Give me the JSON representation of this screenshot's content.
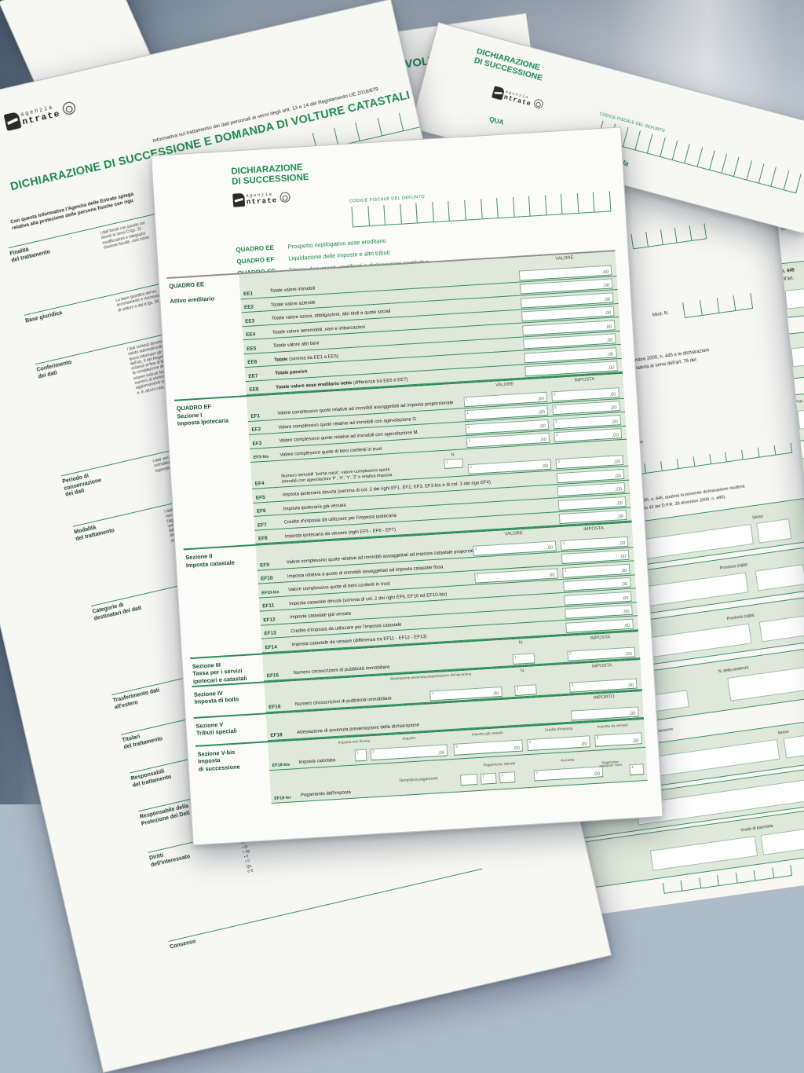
{
  "colors": {
    "green": "#1d8a4c",
    "table_fill": "#dee9da",
    "line_green": "#2f8b58",
    "paper": "#f7f7f4"
  },
  "logo": {
    "line1": "agenzia",
    "line2": "ntrate"
  },
  "left_form": {
    "info_line": "Informativa sul trattamento dei dati personali ai sensi degli artt. 13 e 14 del Regolamento UE 2016/679",
    "title": "DICHIARAZIONE DI SUCCESSIONE E DOMANDA DI VOLTURE CATASTALI",
    "intro_line1": "Con questa informativa l'Agenzia delle Entrate spiega",
    "intro_line2": "relativa alla protezione delle persone fisiche con rigu",
    "cf_label": "CODICE FISCALE DEL DEFUNTO",
    "rows": [
      {
        "label": "Finalità\ndel trattamento",
        "snippet": "I dati forniti con questo mo\ndovuti ai sensi D.lgs. 31\nmodificazioni e integrazio\nelusione fiscale, così come"
      },
      {
        "label": "Base giuridica",
        "snippet": "La base giuridica del tra\naccertamento e riscossio\ndi settore e dal d.lgs. 34"
      },
      {
        "label": "Conferimento\ndei dati",
        "snippet": "I dati richiesti devono\nvaluta automatizzato\ndovrà informare gli i\ndell'art. 9 del Regolam\nrichiesti al fine di liqui\nla compilazione del\nessere indicati facolt\nnumero di telefono\naggiornamenti su\ne, in alcuni casi, p"
      },
      {
        "label": "Periodo di\nconservazione\ndei dati",
        "snippet": "I dati verranno con\nnormativa di rifer\nrispondere a rich"
      },
      {
        "label": "Modalità\ndel trattamento",
        "snippet": "I dati personali t\nraccolti. I tratta\nl'Agenzia delle\nvengono gestit\ndall'alterazione\nintermediari e\nesclusivamente"
      },
      {
        "label": "Categorie di\ndestinatari dei dati",
        "snippet": "I suoi dati pe\npersonali che\ncomunicati a\n• ai soggetti\nuna pronu\n• ad altri e\ndella vige"
      },
      {
        "label": "Trasferimento dati\nall'estero",
        "snippet": "Alcuni da\ninternazio"
      },
      {
        "label": "Titolari\ndel trattamento",
        "snippet": "Titolari d\nper lo s"
      },
      {
        "label": "Responsabili\ndel trattamento",
        "snippet": "L'Agen\ndell'A"
      },
      {
        "label": "Responsabile della\nProtezione dei Dati",
        "snippet": "Il dato"
      },
      {
        "label": "Diritti\ndell'interessato",
        "snippet": "L'inte\noper\n• di\n• op\n• li\n• ri\nQu\ne d"
      },
      {
        "label": "Consenso",
        "snippet": ""
      }
    ]
  },
  "volture_form": {
    "title_fragment": "VOLT",
    "mod_n": "Mod. N.",
    "dpr_line1": "D.P.R. 28 dicembre 2000, n. 445 e le dichiarazioni",
    "dpr_line2": "leggi speciali in materia ai sensi dell'art. 76 del",
    "rappresentante": "rappresentante",
    "qualora_line1": "2000, n. 445, qualora la presente dichiarazione risulterà",
    "qualora_line2": "articolo 43 del D.P.R. 28 dicembre 2000, n. 445).",
    "fields": {
      "sesso": "Sesso",
      "provincia": "Provincia (sigla)",
      "n_sentenza": "N. della sentenza",
      "dichiarazione": "dichiarazione",
      "grado": "Grado di parentela"
    }
  },
  "right_form": {
    "title_line1": "DICHIARAZIONE",
    "title_line2": "DI SUCCESSIONE",
    "cf_label": "CODICE FISCALE DEL DEFUNTO",
    "quadro_fragment": "QUA",
    "italic_fragment": "i alla"
  },
  "far_right_form": {
    "title_fragment": "ario",
    "line1": "n. 445",
    "line2": "dell'art.",
    "prov_fragment": "Prov"
  },
  "main_form": {
    "title_line1": "DICHIARAZIONE",
    "title_line2": "DI SUCCESSIONE",
    "cf_label": "CODICE FISCALE DEL DEFUNTO",
    "quadri": [
      {
        "code": "QUADRO EE",
        "desc": "Prospetto riepilogativo asse ereditario"
      },
      {
        "code": "QUADRO EF",
        "desc": "Liquidazione delle imposte e altri tributi"
      },
      {
        "code": "QUADRO EG",
        "desc": "Elenco documenti, certificati e dichiarazioni sostitutive"
      }
    ],
    "table": {
      "headers": {
        "valore": "VALORE",
        "imposta": "IMPOSTA",
        "importo": "IMPORTO",
        "n": "N."
      },
      "cents": ",00",
      "sections": [
        {
          "label_lines": [
            "QUADRO EE",
            "",
            "Attivo ereditario"
          ],
          "header": {
            "type": "v"
          },
          "rows": [
            {
              "code": "EE1",
              "desc": "Totale valore immobili",
              "cols": "V"
            },
            {
              "code": "EE2",
              "desc": "Totale valore aziende",
              "cols": "V"
            },
            {
              "code": "EE3",
              "desc": "Totale valore azioni, obbligazioni, altri titoli e quote sociali",
              "cols": "V"
            },
            {
              "code": "EE4",
              "desc": "Totale valore aeromobili, navi e imbarcazioni",
              "cols": "V"
            },
            {
              "code": "EE5",
              "desc": "Totale valore altri beni",
              "cols": "V"
            },
            {
              "code": "EE6",
              "desc_bold": "Totale",
              "desc": "(somma da EE1 a EE5)",
              "cols": "V"
            },
            {
              "code": "EE7",
              "desc_bold": "Totale passivo",
              "desc": "",
              "cols": "V"
            },
            {
              "code": "EE8",
              "desc_bold": "Totale valore asse ereditario netto",
              "desc": "(differenza tra EE6 e EE7)",
              "cols": "V"
            }
          ]
        },
        {
          "label_lines": [
            "QUADRO EF",
            "Sezione I",
            "Imposta Ipotecaria"
          ],
          "header": {
            "type": "vi"
          },
          "rows": [
            {
              "code": "EF1",
              "desc": "Valore complessivo quote relative ad immobili assoggettati ad imposta proporzionale",
              "cols": "VI"
            },
            {
              "code": "EF2",
              "desc": "Valore complessivo quote relative ad immobili con agevolazione G",
              "cols": "VI"
            },
            {
              "code": "EF3",
              "desc": "Valore complessivo quote relative ad immobili con agevolazione M.",
              "cols": "VI"
            },
            {
              "code": "EF3-bis",
              "desc": "Valore complessivo quote di beni conferiti in trust",
              "cols": "VI"
            },
            {
              "code": "EF4",
              "desc": "Numero immobili \"prima casa\", valore complessivo quote\nimmobili con agevolazioni 'P', 'X', 'Y', 'Z' e relativa imposta",
              "cols": "NVI"
            },
            {
              "code": "EF5",
              "desc": "Imposta ipotecaria dovuta (somma di col. 2 dei righi EF1, EF2, EF3, EF3-bis e di col. 3 del rigo EF4)",
              "cols": "I"
            },
            {
              "code": "EF6",
              "desc": "Imposta ipotecaria già versata",
              "cols": "I"
            },
            {
              "code": "EF7",
              "desc": "Credito d'imposta da utilizzare per l'imposta ipotecaria",
              "cols": "I"
            },
            {
              "code": "EF8",
              "desc": "Imposta ipotecaria da versare (righi EF5 - EF6 - EF7)",
              "cols": "I"
            }
          ]
        },
        {
          "label_lines": [
            "Sezione II",
            "Imposta catastale"
          ],
          "header": {
            "type": "vi"
          },
          "rows": [
            {
              "code": "EF9",
              "desc": "Valore complessivo quote relative ad immobili assoggettati ad imposta catastale proporzionale",
              "cols": "VI"
            },
            {
              "code": "EF10",
              "desc": "Imposta relativa a quote di immobili assoggettati ad imposta catastale fissa",
              "cols": "I"
            },
            {
              "code": "EF10-bis",
              "desc": "Valore complessivo quote di beni conferiti in trust",
              "cols": "VI"
            },
            {
              "code": "EF11",
              "desc": "Imposta catastale dovuta (somma di col. 2 dei righi EF9, EF10 ed EF10-bis)",
              "cols": "I"
            },
            {
              "code": "EF12",
              "desc": "Imposta catastale già versata",
              "cols": "I"
            },
            {
              "code": "EF13",
              "desc": "Credito d'imposta da utilizzare per l'imposta catastale",
              "cols": "I"
            },
            {
              "code": "EF14",
              "desc": "Imposta catastale da versare (differenza tra EF11 - EF12 - EF13)",
              "cols": "I"
            }
          ]
        },
        {
          "label_lines": [
            "Sezione III",
            "Tassa per i servizi",
            "ipotecari e catastali"
          ],
          "header": {
            "type": "ni"
          },
          "rows": [
            {
              "code": "EF15",
              "desc": "Numero circoscrizioni di pubblicità immobiliare",
              "cols": "NI"
            }
          ]
        },
        {
          "label_lines": [
            "Sezione IV",
            "Imposta di bollo"
          ],
          "header": {
            "type": "ani",
            "attest": "Attestazione avvenuta presentazione dichiarazione"
          },
          "rows": [
            {
              "code": "EF16",
              "desc": "Numero circoscrizioni di pubblicità immobiliare",
              "cols": "ANI"
            }
          ]
        },
        {
          "label_lines": [
            "Sezione V",
            "Tributi speciali"
          ],
          "header": {
            "type": "importo"
          },
          "rows": [
            {
              "code": "EF18",
              "desc": "Attestazione di avvenuta presentazione della dichiarazione",
              "cols": "IMP"
            }
          ]
        },
        {
          "label_lines": [
            "Sezione V-bis",
            "Imposta",
            "di successione"
          ],
          "rows": [
            {
              "code": "EF18-bis",
              "desc": "Imposta calcolata",
              "cols": "5COL",
              "headers": [
                "Imposta non dovuta",
                "Imposta",
                "Imposta già versata",
                "Credito d'imposta",
                "Imposta da versare"
              ]
            },
            {
              "code": "EF18-ter",
              "desc": "Pagamento dell'imposta",
              "cols": "PAG",
              "labels": {
                "tempistica": "Tempistica pagamento",
                "rateale": "Pagamento rateale",
                "acconto": "Acconto",
                "trust": "Pagamento\nanticipato Trust"
              }
            }
          ]
        }
      ]
    }
  }
}
